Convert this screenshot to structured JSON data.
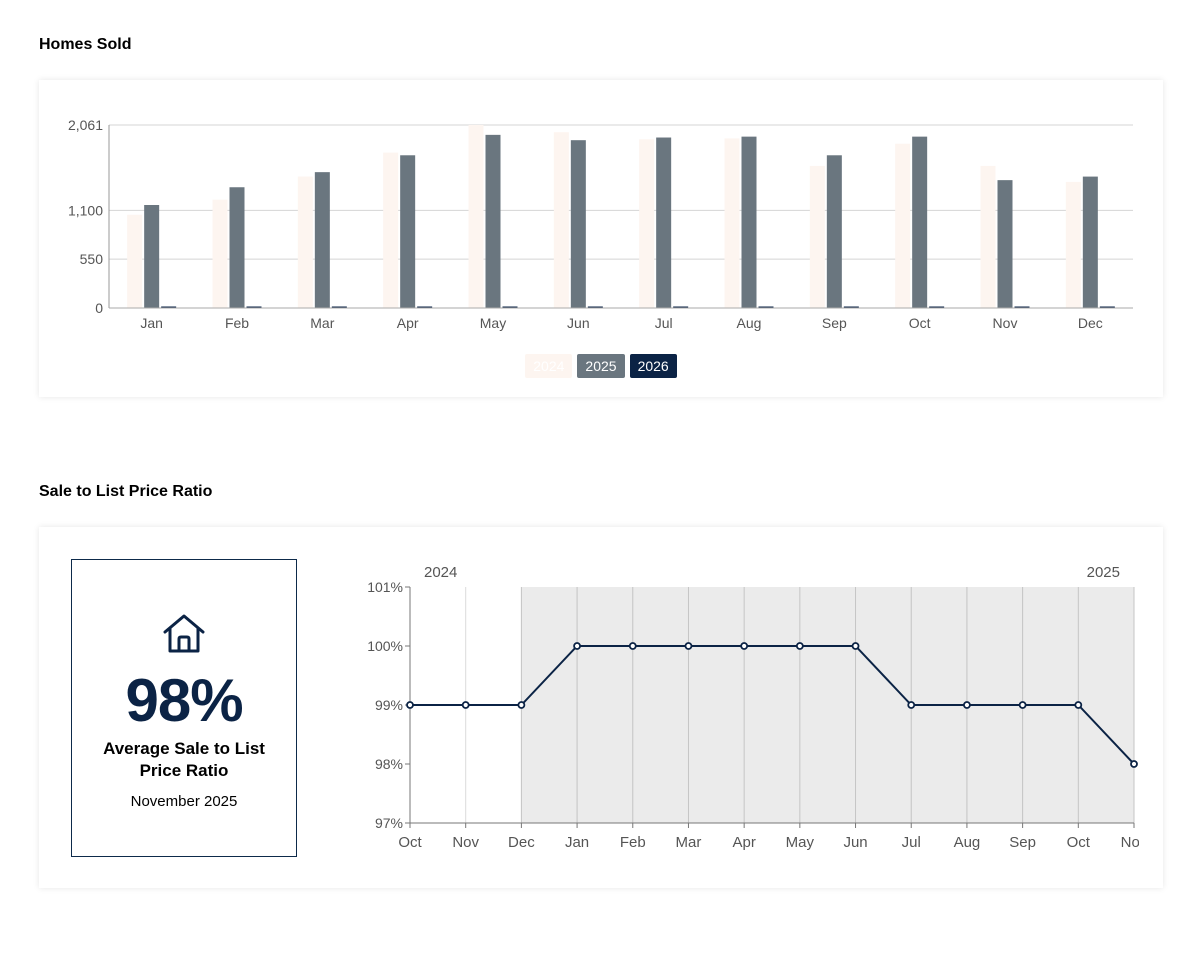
{
  "sections": {
    "homes_sold_title": "Homes Sold",
    "ratio_title": "Sale to List Price Ratio"
  },
  "summary": {
    "value": "98%",
    "label": "Average Sale to List Price Ratio",
    "date": "November 2025",
    "icon": "house-icon"
  },
  "chart_data": [
    {
      "type": "bar",
      "categories": [
        "Jan",
        "Feb",
        "Mar",
        "Apr",
        "May",
        "Jun",
        "Jul",
        "Aug",
        "Sep",
        "Oct",
        "Nov",
        "Dec"
      ],
      "series": [
        {
          "name": "2024",
          "color": "#fdf5f0",
          "values": [
            1050,
            1220,
            1480,
            1750,
            2061,
            1980,
            1900,
            1910,
            1600,
            1850,
            1600,
            1420
          ]
        },
        {
          "name": "2025",
          "color": "#6a767f",
          "values": [
            1160,
            1360,
            1530,
            1720,
            1950,
            1890,
            1920,
            1930,
            1720,
            1930,
            1440,
            1480
          ]
        },
        {
          "name": "2026",
          "color": "#0b2345",
          "values": [
            0,
            0,
            0,
            0,
            0,
            0,
            0,
            0,
            0,
            0,
            0,
            0
          ]
        }
      ],
      "y_ticks": [
        0,
        550,
        1100,
        2061
      ],
      "y_tick_labels": [
        "0",
        "550",
        "1,100",
        "2,061"
      ],
      "ylim": [
        0,
        2061
      ],
      "grid": true,
      "legend_position": "bottom-center"
    },
    {
      "type": "line",
      "x": [
        "Oct",
        "Nov",
        "Dec",
        "Jan",
        "Feb",
        "Mar",
        "Apr",
        "May",
        "Jun",
        "Jul",
        "Aug",
        "Sep",
        "Oct",
        "Nov"
      ],
      "series": [
        {
          "color": "#0b2345",
          "values": [
            99,
            99,
            99,
            100,
            100,
            100,
            100,
            100,
            100,
            99,
            99,
            99,
            99,
            98
          ]
        }
      ],
      "year_labels": [
        "2024",
        "2025"
      ],
      "y_ticks": [
        97,
        98,
        99,
        100,
        101
      ],
      "y_tick_labels": [
        "97%",
        "98%",
        "99%",
        "100%",
        "101%"
      ],
      "ylim": [
        97,
        101
      ],
      "shaded_from_index": 2,
      "shaded_to_index": 13,
      "shade_color": "#ebebeb",
      "grid": true
    }
  ]
}
